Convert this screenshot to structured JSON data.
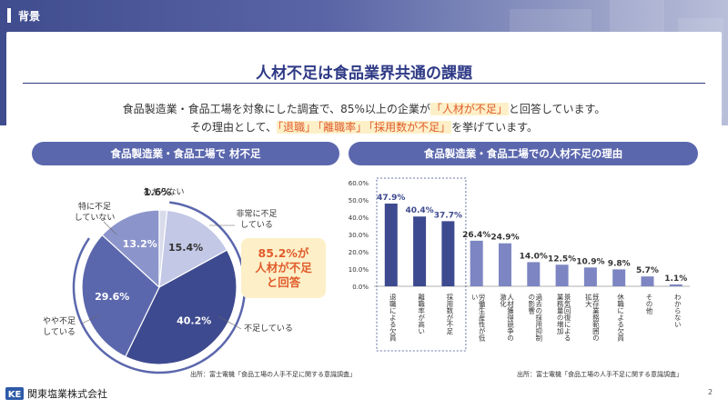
{
  "header": {
    "section_tag": "背景"
  },
  "title": "人材不足は食品業界共通の課題",
  "intro": {
    "line1": [
      {
        "text": "食品製造業・食品工場を対象にした調査で、85%以上の企業が",
        "hl": false
      },
      {
        "text": "「人材が不足」",
        "hl": true
      },
      {
        "text": "と回答しています。",
        "hl": false
      }
    ],
    "line2": [
      {
        "text": "その理由として、",
        "hl": false
      },
      {
        "text": "「退職」",
        "hl": true
      },
      {
        "text": "「離職率」",
        "hl": true
      },
      {
        "text": "「採用数が不足」",
        "hl": true
      },
      {
        "text": "を挙げています。",
        "hl": false
      }
    ]
  },
  "left_panel": {
    "heading": "食品製造業・食品工場で 材不足",
    "callout": [
      "85.2%が",
      "人材が不足",
      "と回答"
    ],
    "source": "出所：富士電機「食品工場の人手不足に関する意識調査」"
  },
  "right_panel": {
    "heading": "食品製造業・食品工場での人材不足の理由",
    "source": "出所：富士電機「食品工場の人手不足に関する意識調査」"
  },
  "colors": {
    "brand": "#2e3a86",
    "accent": "#e05b2b",
    "highlight_bg": "#fdf0c8",
    "dark_bar": "#3e4a8f",
    "light_bar": "#7d86c2"
  },
  "chart_data": [
    {
      "type": "pie",
      "slices": [
        {
          "label": "非常に不足している",
          "value": 15.4,
          "color": "#c3c8e6"
        },
        {
          "label": "不足している",
          "value": 40.2,
          "color": "#3e4a8f"
        },
        {
          "label": "やや不足している",
          "value": 29.6,
          "color": "#5b67ad"
        },
        {
          "label": "特に不足していない",
          "value": 13.2,
          "color": "#8c95cb"
        },
        {
          "label": "わからない",
          "value": 1.6,
          "color": "#d8dbea"
        }
      ],
      "value_labels": [
        "15.4%",
        "40.2%",
        "29.6%",
        "13.2%",
        "1.6%"
      ],
      "callout_labels": [
        "非常に不足\nしている",
        "不足している",
        "やや不足\nしている",
        "特に不足\nしていない",
        "わからない"
      ]
    },
    {
      "type": "bar",
      "categories": [
        "退職による欠員",
        "離職率が高い",
        "採用数が不足",
        "労働生産性が低い",
        "人材獲得競争の激化",
        "過去の採用抑制の影響",
        "景気回復による業務量の増加",
        "既存業務範囲の拡大",
        "休職による欠員",
        "その他",
        "わからない"
      ],
      "values": [
        47.9,
        40.4,
        37.7,
        26.4,
        24.9,
        14.0,
        12.5,
        10.9,
        9.8,
        5.7,
        1.1
      ],
      "value_labels": [
        "47.9%",
        "40.4%",
        "37.7%",
        "26.4%",
        "24.9%",
        "14.0%",
        "12.5%",
        "10.9%",
        "9.8%",
        "5.7%",
        "1.1%"
      ],
      "highlighted": [
        true,
        true,
        true,
        false,
        false,
        false,
        false,
        false,
        false,
        false,
        false
      ],
      "ylim": [
        0,
        60
      ],
      "yticks": [
        "0.0%",
        "10.0%",
        "20.0%",
        "30.0%",
        "40.0%",
        "50.0%",
        "60.0%"
      ],
      "grid": false
    }
  ],
  "footer": {
    "logo_text": "KE",
    "company": "関東塩業株式会社",
    "page": "2"
  }
}
